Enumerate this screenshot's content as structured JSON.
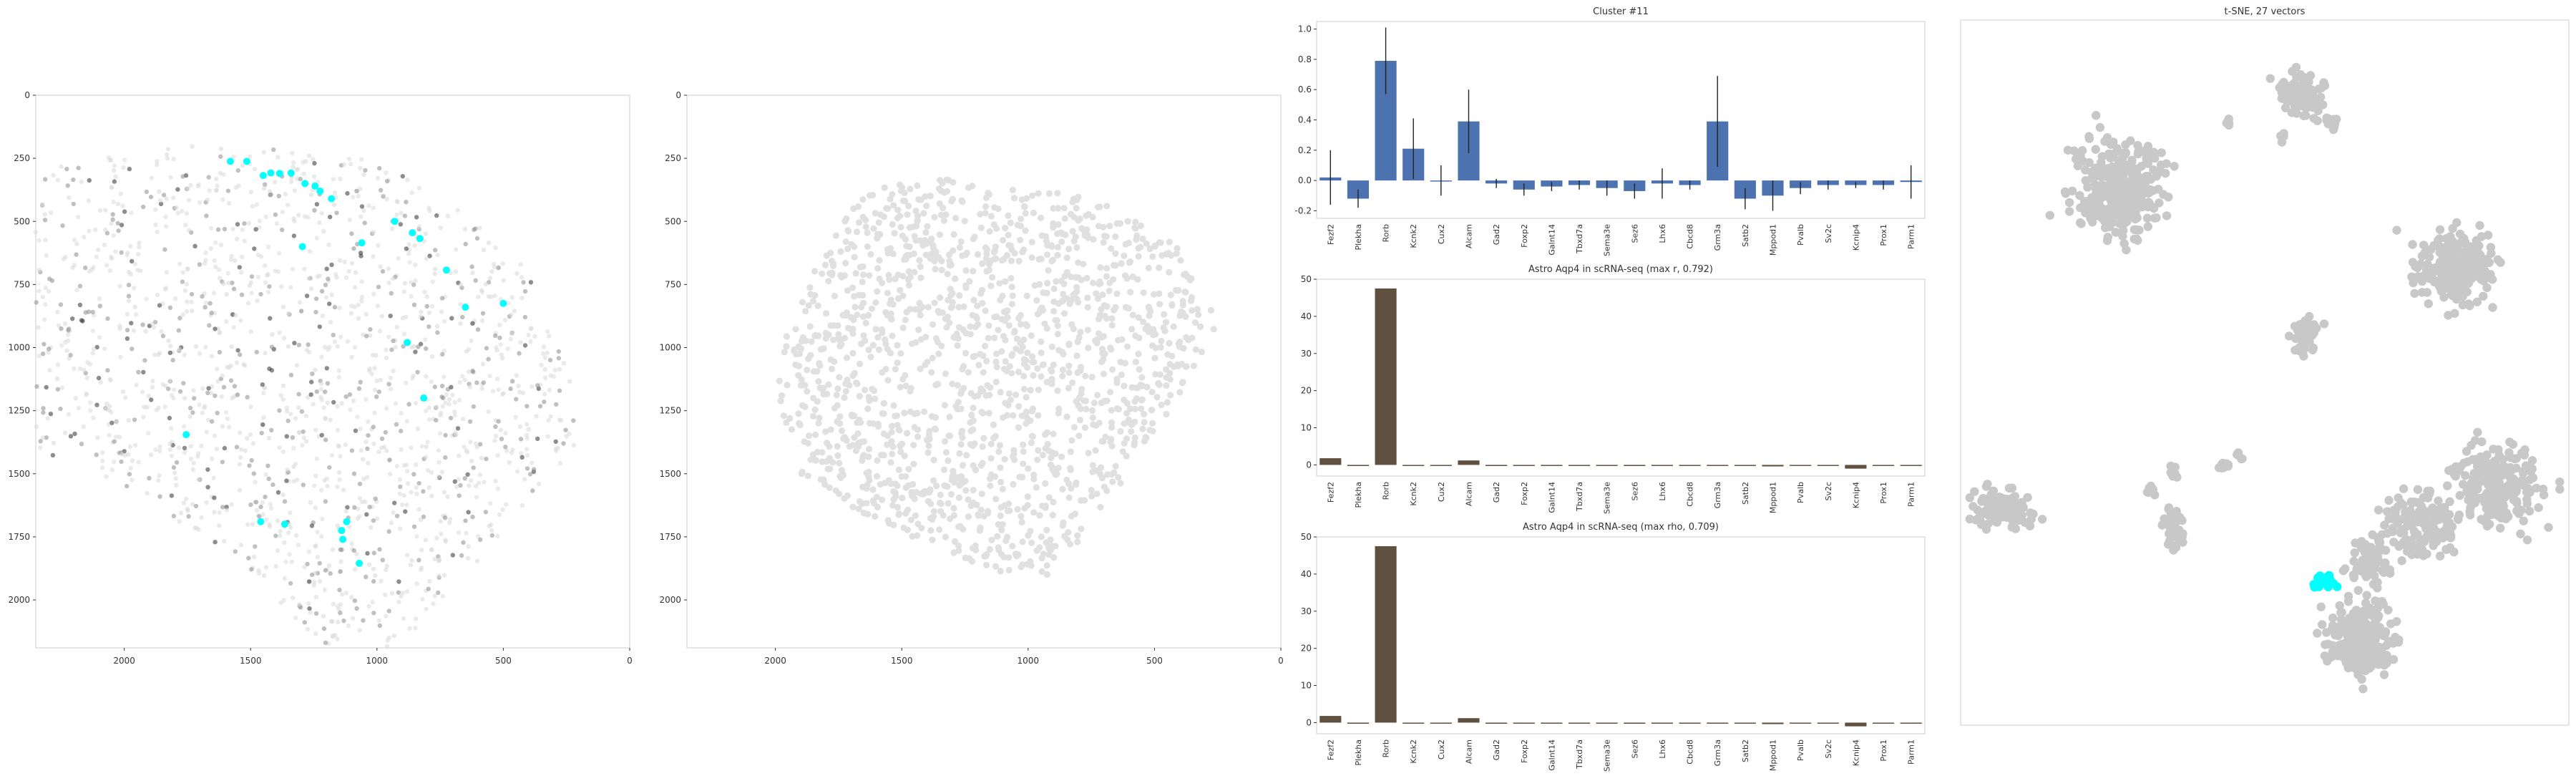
{
  "chart_data": [
    {
      "type": "scatter",
      "title": "",
      "xlabel": "",
      "ylabel": "",
      "xlim": [
        2350,
        0
      ],
      "ylim": [
        2190,
        0
      ],
      "x_ticks": [
        "2000",
        "1500",
        "1000",
        "500",
        "0"
      ],
      "y_ticks": [
        "0",
        "250",
        "500",
        "750",
        "1000",
        "1250",
        "1500",
        "1750",
        "2000"
      ],
      "grid": false,
      "background_colors": [
        "#d9d9d9",
        "#8c8c8c",
        "#2f2f2f"
      ],
      "highlight_color": "#00ffff",
      "highlighted_points": [
        {
          "x": 1580,
          "y": 262
        },
        {
          "x": 1515,
          "y": 262
        },
        {
          "x": 1450,
          "y": 318
        },
        {
          "x": 1420,
          "y": 308
        },
        {
          "x": 1385,
          "y": 310
        },
        {
          "x": 1340,
          "y": 308
        },
        {
          "x": 1285,
          "y": 350
        },
        {
          "x": 1245,
          "y": 360
        },
        {
          "x": 1225,
          "y": 380
        },
        {
          "x": 1180,
          "y": 410
        },
        {
          "x": 1060,
          "y": 585
        },
        {
          "x": 1295,
          "y": 600
        },
        {
          "x": 930,
          "y": 500
        },
        {
          "x": 860,
          "y": 545
        },
        {
          "x": 830,
          "y": 568
        },
        {
          "x": 725,
          "y": 693
        },
        {
          "x": 650,
          "y": 840
        },
        {
          "x": 500,
          "y": 825
        },
        {
          "x": 880,
          "y": 980
        },
        {
          "x": 815,
          "y": 1200
        },
        {
          "x": 1755,
          "y": 1345
        },
        {
          "x": 1460,
          "y": 1690
        },
        {
          "x": 1365,
          "y": 1700
        },
        {
          "x": 1120,
          "y": 1690
        },
        {
          "x": 1140,
          "y": 1725
        },
        {
          "x": 1135,
          "y": 1760
        },
        {
          "x": 1070,
          "y": 1855
        }
      ]
    },
    {
      "type": "scatter",
      "title": "",
      "xlabel": "",
      "ylabel": "",
      "xlim": [
        2350,
        0
      ],
      "ylim": [
        2190,
        0
      ],
      "x_ticks": [
        "2000",
        "1500",
        "1000",
        "500",
        "0"
      ],
      "y_ticks": [
        "0",
        "250",
        "500",
        "750",
        "1000",
        "1250",
        "1500",
        "1750",
        "2000"
      ],
      "grid": false,
      "point_color": "#e0e0e0"
    },
    {
      "type": "bar",
      "title": "Cluster #11",
      "categories": [
        "Fezf2",
        "Plekha",
        "Rorb",
        "Kcnk2",
        "Cux2",
        "Alcam",
        "Gad2",
        "Foxp2",
        "Galnt14",
        "Tbxd7a",
        "Sema3e",
        "Sez6",
        "Lhx6",
        "Cbcd8",
        "Grm3a",
        "Satb2",
        "Mppod1",
        "Pvalb",
        "Sv2c",
        "Kcnip4",
        "Prox1",
        "Parm1"
      ],
      "values": [
        0.02,
        -0.12,
        0.79,
        0.21,
        0.0,
        0.39,
        -0.02,
        -0.06,
        -0.04,
        -0.03,
        -0.05,
        -0.07,
        -0.02,
        -0.03,
        0.39,
        -0.12,
        -0.1,
        -0.05,
        -0.03,
        -0.03,
        -0.03,
        -0.01
      ],
      "errors": [
        0.18,
        0.06,
        0.22,
        0.2,
        0.1,
        0.21,
        0.03,
        0.04,
        0.03,
        0.03,
        0.05,
        0.05,
        0.1,
        0.03,
        0.3,
        0.07,
        0.1,
        0.04,
        0.03,
        0.02,
        0.03,
        0.11
      ],
      "ylim": [
        -0.25,
        1.05
      ],
      "y_ticks": [
        "−0.2",
        "0.0",
        "0.2",
        "0.4",
        "0.6",
        "0.8",
        "1.0"
      ],
      "bar_color": "#4c72b0",
      "grid": false
    },
    {
      "type": "bar",
      "title": "Astro Aqp4 in scRNA-seq (max r, 0.792)",
      "categories": [
        "Fezf2",
        "Plekha",
        "Rorb",
        "Kcnk2",
        "Cux2",
        "Alcam",
        "Gad2",
        "Foxp2",
        "Galnt14",
        "Tbxd7a",
        "Sema3e",
        "Sez6",
        "Lhx6",
        "Cbcd8",
        "Grm3a",
        "Satb2",
        "Mppod1",
        "Pvalb",
        "Sv2c",
        "Kcnip4",
        "Prox1",
        "Parm1"
      ],
      "values": [
        1.8,
        -0.3,
        47.5,
        0.0,
        -0.1,
        1.2,
        -0.3,
        0.0,
        -0.2,
        0.0,
        -0.2,
        -0.3,
        -0.2,
        0.0,
        0.0,
        -0.2,
        -0.4,
        -0.2,
        -0.1,
        -1.0,
        0.0,
        -0.2
      ],
      "ylim": [
        -3,
        50
      ],
      "y_ticks": [
        "0",
        "10",
        "20",
        "30",
        "40",
        "50"
      ],
      "bar_color": "#5f5040",
      "grid": false
    },
    {
      "type": "bar",
      "title": "Astro Aqp4 in scRNA-seq (max rho, 0.709)",
      "categories": [
        "Fezf2",
        "Plekha",
        "Rorb",
        "Kcnk2",
        "Cux2",
        "Alcam",
        "Gad2",
        "Foxp2",
        "Galnt14",
        "Tbxd7a",
        "Sema3e",
        "Sez6",
        "Lhx6",
        "Cbcd8",
        "Grm3a",
        "Satb2",
        "Mppod1",
        "Pvalb",
        "Sv2c",
        "Kcnip4",
        "Prox1",
        "Parm1"
      ],
      "values": [
        1.8,
        -0.3,
        47.5,
        0.0,
        -0.1,
        1.2,
        -0.3,
        0.0,
        -0.2,
        0.0,
        -0.2,
        -0.3,
        -0.2,
        0.0,
        0.0,
        -0.2,
        -0.4,
        -0.2,
        -0.1,
        -1.0,
        0.0,
        -0.2
      ],
      "ylim": [
        -3,
        50
      ],
      "y_ticks": [
        "0",
        "10",
        "20",
        "30",
        "40",
        "50"
      ],
      "bar_color": "#5f5040",
      "grid": false
    },
    {
      "type": "scatter",
      "title": "t-SNE, 27 vectors",
      "xlabel": "",
      "ylabel": "",
      "grid": false,
      "axes_visible": false,
      "point_color": "#c8c8c8",
      "highlight_color": "#00ffff",
      "clusters": [
        {
          "cx": 0.56,
          "cy": 0.105,
          "sx": 0.035,
          "sy": 0.028,
          "n": 110,
          "highlight": false
        },
        {
          "cx": 0.61,
          "cy": 0.145,
          "sx": 0.012,
          "sy": 0.012,
          "n": 14,
          "highlight": false
        },
        {
          "cx": 0.44,
          "cy": 0.145,
          "sx": 0.006,
          "sy": 0.006,
          "n": 4,
          "highlight": false
        },
        {
          "cx": 0.53,
          "cy": 0.165,
          "sx": 0.006,
          "sy": 0.006,
          "n": 4,
          "highlight": false
        },
        {
          "cx": 0.26,
          "cy": 0.245,
          "sx": 0.065,
          "sy": 0.058,
          "n": 320,
          "highlight": false
        },
        {
          "cx": 0.81,
          "cy": 0.35,
          "sx": 0.055,
          "sy": 0.042,
          "n": 230,
          "highlight": false
        },
        {
          "cx": 0.57,
          "cy": 0.445,
          "sx": 0.02,
          "sy": 0.022,
          "n": 50,
          "highlight": false
        },
        {
          "cx": 0.88,
          "cy": 0.66,
          "sx": 0.07,
          "sy": 0.05,
          "n": 200,
          "highlight": false
        },
        {
          "cx": 0.76,
          "cy": 0.72,
          "sx": 0.06,
          "sy": 0.04,
          "n": 160,
          "highlight": false
        },
        {
          "cx": 0.67,
          "cy": 0.77,
          "sx": 0.035,
          "sy": 0.03,
          "n": 60,
          "highlight": false
        },
        {
          "cx": 0.66,
          "cy": 0.88,
          "sx": 0.05,
          "sy": 0.055,
          "n": 240,
          "highlight": false
        },
        {
          "cx": 0.07,
          "cy": 0.69,
          "sx": 0.04,
          "sy": 0.024,
          "n": 130,
          "highlight": false
        },
        {
          "cx": 0.35,
          "cy": 0.72,
          "sx": 0.014,
          "sy": 0.03,
          "n": 40,
          "highlight": false
        },
        {
          "cx": 0.31,
          "cy": 0.665,
          "sx": 0.008,
          "sy": 0.008,
          "n": 8,
          "highlight": false
        },
        {
          "cx": 0.35,
          "cy": 0.64,
          "sx": 0.008,
          "sy": 0.008,
          "n": 8,
          "highlight": false
        },
        {
          "cx": 0.43,
          "cy": 0.63,
          "sx": 0.008,
          "sy": 0.008,
          "n": 8,
          "highlight": false
        },
        {
          "cx": 0.46,
          "cy": 0.615,
          "sx": 0.006,
          "sy": 0.006,
          "n": 5,
          "highlight": false
        },
        {
          "cx": 0.595,
          "cy": 0.795,
          "sx": 0.016,
          "sy": 0.01,
          "n": 27,
          "highlight": true
        }
      ]
    }
  ]
}
